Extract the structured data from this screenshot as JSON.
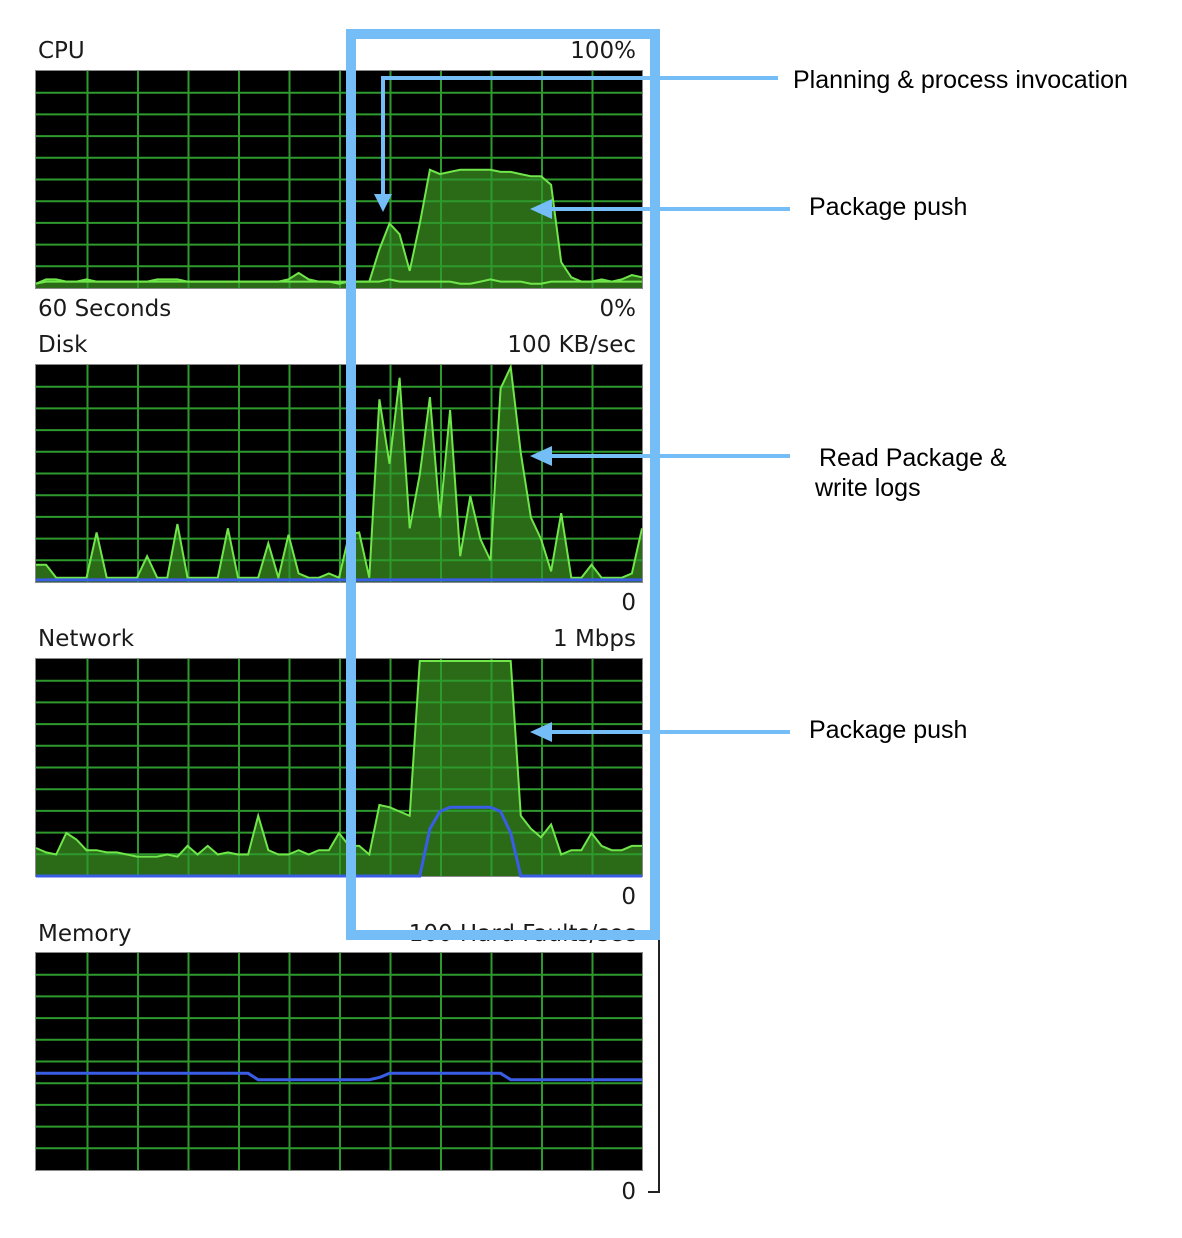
{
  "colors": {
    "plot_bg": "#000000",
    "grid": "#2e9a2e",
    "fill": "#2b6a16",
    "line": "#6fe64a",
    "blue": "#3a5de6",
    "highlight": "#74bdf6",
    "text": "#1a1a1a"
  },
  "chart_data": [
    {
      "type": "area",
      "title": "CPU",
      "top_label": "100%",
      "left_bottom_label": "60 Seconds",
      "bottom_label": "0%",
      "ylim": [
        0,
        100
      ],
      "x": [
        0,
        1,
        2,
        3,
        4,
        5,
        6,
        7,
        8,
        9,
        10,
        11,
        12,
        13,
        14,
        15,
        16,
        17,
        18,
        19,
        20,
        21,
        22,
        23,
        24,
        25,
        26,
        27,
        28,
        29,
        30,
        31,
        32,
        33,
        34,
        35,
        36,
        37,
        38,
        39,
        40,
        41,
        42,
        43,
        44,
        45,
        46,
        47,
        48,
        49,
        50,
        51,
        52,
        53,
        54,
        55,
        56,
        57,
        58,
        59,
        60
      ],
      "series": [
        {
          "role": "fill",
          "values": [
            2,
            4,
            4,
            3,
            3,
            4,
            3,
            3,
            3,
            3,
            3,
            3,
            4,
            4,
            4,
            3,
            3,
            3,
            3,
            3,
            3,
            3,
            3,
            3,
            3,
            4,
            7,
            4,
            3,
            3,
            2,
            3,
            3,
            3,
            3,
            4,
            3,
            3,
            3,
            3,
            3,
            3,
            2,
            2,
            3,
            4,
            3,
            3,
            3,
            2,
            2,
            3,
            3,
            3,
            3,
            3,
            4,
            3,
            4,
            6,
            5
          ]
        },
        {
          "role": "fill",
          "values": [
            2,
            3,
            3,
            3,
            3,
            3,
            3,
            3,
            3,
            3,
            3,
            3,
            3,
            3,
            3,
            3,
            3,
            3,
            3,
            3,
            3,
            3,
            3,
            3,
            3,
            3,
            3,
            3,
            3,
            3,
            3,
            3,
            3,
            3,
            18,
            30,
            25,
            8,
            30,
            55,
            53,
            54,
            55,
            55,
            55,
            55,
            54,
            54,
            53,
            52,
            52,
            48,
            12,
            5,
            3,
            3,
            3,
            3,
            3,
            3,
            3
          ]
        }
      ]
    },
    {
      "type": "area",
      "title": "Disk",
      "top_label": "100 KB/sec",
      "bottom_label": "0",
      "ylim": [
        0,
        100
      ],
      "x": [
        0,
        1,
        2,
        3,
        4,
        5,
        6,
        7,
        8,
        9,
        10,
        11,
        12,
        13,
        14,
        15,
        16,
        17,
        18,
        19,
        20,
        21,
        22,
        23,
        24,
        25,
        26,
        27,
        28,
        29,
        30,
        31,
        32,
        33,
        34,
        35,
        36,
        37,
        38,
        39,
        40,
        41,
        42,
        43,
        44,
        45,
        46,
        47,
        48,
        49,
        50,
        51,
        52,
        53,
        54,
        55,
        56,
        57,
        58,
        59,
        60
      ],
      "series": [
        {
          "role": "fill",
          "values": [
            8,
            8,
            2,
            2,
            2,
            2,
            23,
            2,
            2,
            2,
            2,
            12,
            2,
            2,
            27,
            2,
            2,
            2,
            2,
            25,
            2,
            2,
            2,
            18,
            2,
            22,
            4,
            2,
            2,
            4,
            2,
            22,
            23,
            2,
            85,
            55,
            95,
            25,
            50,
            86,
            30,
            80,
            12,
            40,
            20,
            10,
            90,
            100,
            60,
            30,
            20,
            5,
            32,
            2,
            2,
            8,
            2,
            2,
            2,
            4,
            25
          ]
        },
        {
          "role": "line",
          "color": "blue",
          "values": [
            1,
            1,
            1,
            1,
            1,
            1,
            1,
            1,
            1,
            1,
            1,
            1,
            1,
            1,
            1,
            1,
            1,
            1,
            1,
            1,
            1,
            1,
            1,
            1,
            1,
            1,
            1,
            1,
            1,
            1,
            1,
            1,
            1,
            1,
            1,
            1,
            1,
            1,
            1,
            1,
            1,
            1,
            1,
            1,
            1,
            1,
            1,
            1,
            1,
            1,
            1,
            1,
            1,
            1,
            1,
            1,
            1,
            1,
            1,
            1,
            1
          ]
        }
      ]
    },
    {
      "type": "area",
      "title": "Network",
      "top_label": "1 Mbps",
      "bottom_label": "0",
      "ylim": [
        0,
        100
      ],
      "x": [
        0,
        1,
        2,
        3,
        4,
        5,
        6,
        7,
        8,
        9,
        10,
        11,
        12,
        13,
        14,
        15,
        16,
        17,
        18,
        19,
        20,
        21,
        22,
        23,
        24,
        25,
        26,
        27,
        28,
        29,
        30,
        31,
        32,
        33,
        34,
        35,
        36,
        37,
        38,
        39,
        40,
        41,
        42,
        43,
        44,
        45,
        46,
        47,
        48,
        49,
        50,
        51,
        52,
        53,
        54,
        55,
        56,
        57,
        58,
        59,
        60
      ],
      "series": [
        {
          "role": "fill",
          "values": [
            13,
            11,
            10,
            20,
            17,
            12,
            12,
            11,
            11,
            10,
            9,
            9,
            9,
            10,
            9,
            14,
            10,
            14,
            10,
            11,
            10,
            10,
            28,
            12,
            10,
            10,
            12,
            10,
            12,
            12,
            20,
            14,
            14,
            10,
            33,
            32,
            30,
            28,
            100,
            100,
            100,
            100,
            100,
            100,
            100,
            100,
            100,
            100,
            28,
            22,
            18,
            24,
            10,
            12,
            12,
            20,
            14,
            12,
            12,
            14,
            14
          ]
        },
        {
          "role": "line",
          "color": "blue",
          "values": [
            0,
            0,
            0,
            0,
            0,
            0,
            0,
            0,
            0,
            0,
            0,
            0,
            0,
            0,
            0,
            0,
            0,
            0,
            0,
            0,
            0,
            0,
            0,
            0,
            0,
            0,
            0,
            0,
            0,
            0,
            0,
            0,
            0,
            0,
            0,
            0,
            0,
            0,
            0,
            22,
            30,
            32,
            32,
            32,
            32,
            32,
            30,
            20,
            0,
            0,
            0,
            0,
            0,
            0,
            0,
            0,
            0,
            0,
            0,
            0,
            0
          ]
        }
      ]
    },
    {
      "type": "line",
      "title": "Memory",
      "top_label": "100 Hard Faults/sec",
      "bottom_label": "0",
      "ylim": [
        0,
        100
      ],
      "x": [
        0,
        1,
        2,
        3,
        4,
        5,
        6,
        7,
        8,
        9,
        10,
        11,
        12,
        13,
        14,
        15,
        16,
        17,
        18,
        19,
        20,
        21,
        22,
        23,
        24,
        25,
        26,
        27,
        28,
        29,
        30,
        31,
        32,
        33,
        34,
        35,
        36,
        37,
        38,
        39,
        40,
        41,
        42,
        43,
        44,
        45,
        46,
        47,
        48,
        49,
        50,
        51,
        52,
        53,
        54,
        55,
        56,
        57,
        58,
        59,
        60
      ],
      "series": [
        {
          "role": "line",
          "color": "blue",
          "values": [
            45,
            45,
            45,
            45,
            45,
            45,
            45,
            45,
            45,
            45,
            45,
            45,
            45,
            45,
            45,
            45,
            45,
            45,
            45,
            45,
            45,
            45,
            42,
            42,
            42,
            42,
            42,
            42,
            42,
            42,
            42,
            42,
            42,
            42,
            43,
            45,
            45,
            45,
            45,
            45,
            45,
            45,
            45,
            45,
            45,
            45,
            45,
            42,
            42,
            42,
            42,
            42,
            42,
            42,
            42,
            42,
            42,
            42,
            42,
            42,
            42
          ]
        }
      ]
    }
  ],
  "annotations": [
    {
      "text": "Planning & process invocation"
    },
    {
      "text": "Package push"
    },
    {
      "line1": "Read Package &",
      "line2": "write logs"
    },
    {
      "text": "Package push"
    }
  ]
}
